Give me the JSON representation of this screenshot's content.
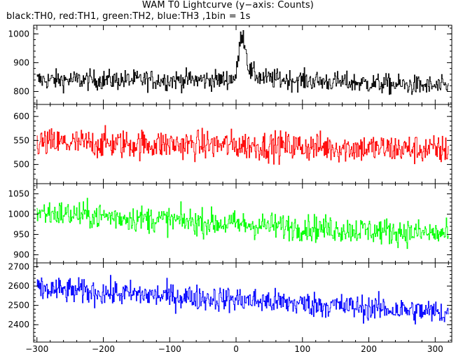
{
  "title": "WAM T0 Lightcurve (y−axis: Counts)",
  "subtitle": "black:TH0, red:TH1, green:TH2, blue:TH3 ,1bin = 1s",
  "chart_data": [
    {
      "type": "line",
      "series": [
        {
          "color": "#000000"
        }
      ],
      "x_range": [
        -305,
        325
      ],
      "ylim": [
        755,
        1030
      ],
      "yticks": [
        800,
        900,
        1000
      ],
      "baseline": [
        [
          -305,
          840
        ],
        [
          -20,
          840
        ],
        [
          0,
          850
        ],
        [
          5,
          950
        ],
        [
          9,
          1010
        ],
        [
          14,
          960
        ],
        [
          20,
          870
        ],
        [
          40,
          845
        ],
        [
          325,
          815
        ]
      ],
      "noise": 32,
      "peak": {
        "x": 8,
        "y": 1025
      }
    },
    {
      "type": "line",
      "series": [
        {
          "color": "#ff0000"
        }
      ],
      "x_range": [
        -305,
        325
      ],
      "ylim": [
        460,
        625
      ],
      "yticks": [
        500,
        550,
        600
      ],
      "baseline": [
        [
          -305,
          545
        ],
        [
          0,
          540
        ],
        [
          325,
          530
        ]
      ],
      "noise": 28
    },
    {
      "type": "line",
      "series": [
        {
          "color": "#00ff00"
        }
      ],
      "x_range": [
        -305,
        325
      ],
      "ylim": [
        880,
        1075
      ],
      "yticks": [
        900,
        950,
        1000,
        1050
      ],
      "baseline": [
        [
          -305,
          1005
        ],
        [
          0,
          975
        ],
        [
          325,
          950
        ]
      ],
      "noise": 30
    },
    {
      "type": "line",
      "series": [
        {
          "color": "#0000ff"
        }
      ],
      "x_range": [
        -305,
        325
      ],
      "ylim": [
        2310,
        2720
      ],
      "yticks": [
        2400,
        2500,
        2600,
        2700
      ],
      "baseline": [
        [
          -305,
          2585
        ],
        [
          0,
          2530
        ],
        [
          325,
          2460
        ]
      ],
      "noise": 60
    }
  ],
  "x_axis": {
    "ticks": [
      -300,
      -200,
      -100,
      0,
      100,
      200,
      300
    ],
    "tick_labels": [
      "−300",
      "−200",
      "−100",
      "0",
      "100",
      "200",
      "300"
    ]
  }
}
